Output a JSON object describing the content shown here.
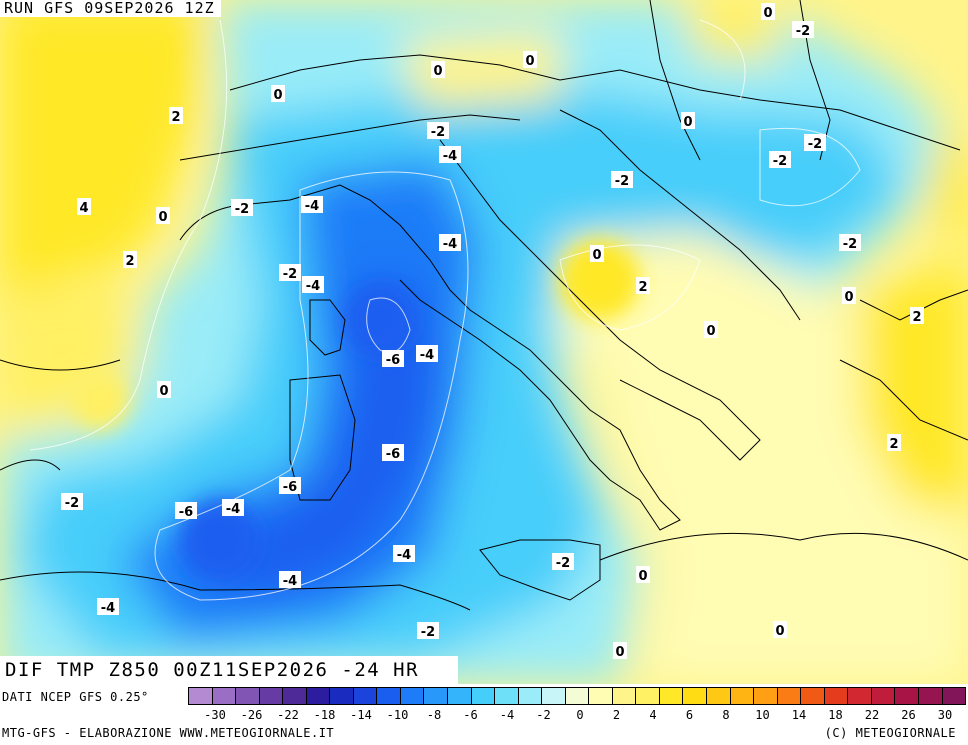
{
  "header": {
    "run_label": "RUN GFS 09SEP2026 12Z"
  },
  "field_title": "DIF TMP Z850 00Z11SEP2026 -24 HR",
  "data_source": "DATI NCEP GFS 0.25°",
  "footer": {
    "left": "MTG-GFS - ELABORAZIONE WWW.METEOGIORNALE.IT",
    "right": "(C) METEOGIORNALE"
  },
  "colorbar": {
    "colors": [
      "#b48ad2",
      "#9a6ec4",
      "#8055b4",
      "#663ca4",
      "#4e2a98",
      "#2c1ca0",
      "#1a2cc0",
      "#1a44dc",
      "#1a5ef0",
      "#1e7cf8",
      "#2898fa",
      "#34b4fa",
      "#46cefa",
      "#6ee0f8",
      "#9aecf8",
      "#c8f6f8",
      "#f4fcd6",
      "#fffcb4",
      "#fff48a",
      "#fff064",
      "#ffe828",
      "#ffdc14",
      "#ffc814",
      "#ffb414",
      "#ffa014",
      "#fa7c14",
      "#f05a14",
      "#e63c1e",
      "#d22832",
      "#c01c3c",
      "#a81446",
      "#961450",
      "#82145a"
    ],
    "ticks": [
      "-30",
      "-26",
      "-22",
      "-18",
      "-14",
      "-10",
      "-8",
      "-6",
      "-4",
      "-2",
      "0",
      "2",
      "4",
      "6",
      "8",
      "10",
      "14",
      "18",
      "22",
      "26",
      "30"
    ]
  },
  "map_labels": [
    "0",
    "-2",
    "0",
    "2",
    "0",
    "0",
    "-2",
    "-4",
    "0",
    "-2",
    "-2",
    "-2",
    "4",
    "0",
    "-2",
    "-4",
    "-4",
    "-2",
    "2",
    "-4",
    "-2",
    "0",
    "2",
    "0",
    "2",
    "-6",
    "-4",
    "0",
    "0",
    "-6",
    "-6",
    "-2",
    "-4",
    "-6",
    "-4",
    "-4",
    "-2",
    "0",
    "0",
    "-2",
    "2",
    "0",
    "-4"
  ]
}
